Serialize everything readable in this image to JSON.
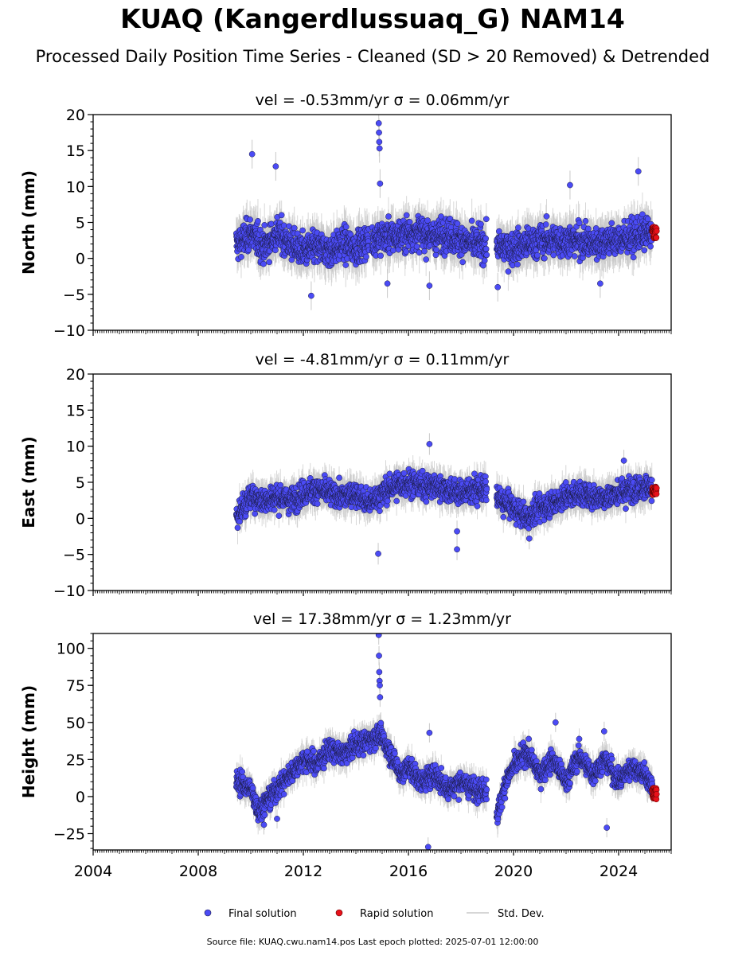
{
  "figure": {
    "title": "KUAQ (Kangerdlussuaq_G) NAM14",
    "subtitle": "Processed Daily Position Time Series - Cleaned (SD > 20 Removed) & Detrended",
    "footer": "Source file: KUAQ.cwu.nam14.pos  Last epoch plotted: 2025-07-01 12:00:00"
  },
  "legend": {
    "final_label": "Final solution",
    "rapid_label": "Rapid solution",
    "std_label": "Std. Dev."
  },
  "colors": {
    "final": "#4b4bf5",
    "rapid": "#e8111a",
    "std": "#c8c8c8",
    "marker_edge": "#1a1a40"
  },
  "chart_data": [
    {
      "type": "scatter",
      "title": "vel = -0.53mm/yr   σ = 0.06mm/yr",
      "ylabel": "North (mm)",
      "xlim": [
        2004.0,
        2026.0
      ],
      "ylim": [
        -10,
        20
      ],
      "yticks": [
        -10,
        -5,
        0,
        5,
        10,
        15,
        20
      ],
      "ytick_labels": [
        "−10",
        "−5",
        "0",
        "5",
        "10",
        "15",
        "20"
      ],
      "data_start": 2009.45,
      "data_end": 2025.45,
      "rapid_start": 2025.28,
      "gaps": [
        [
          2014.5,
          2014.62
        ],
        [
          2018.98,
          2019.35
        ]
      ],
      "series": [
        {
          "name": "Final solution",
          "kind": "profile",
          "x": [
            2009.5,
            2010.0,
            2010.5,
            2011.0,
            2011.5,
            2012.0,
            2012.5,
            2013.0,
            2013.5,
            2014.0,
            2014.5,
            2015.0,
            2015.5,
            2016.0,
            2016.5,
            2017.0,
            2017.5,
            2018.0,
            2018.5,
            2019.0,
            2019.5,
            2020.0,
            2020.5,
            2021.0,
            2021.5,
            2022.0,
            2022.5,
            2023.0,
            2023.5,
            2024.0,
            2024.5,
            2025.0,
            2025.3
          ],
          "y": [
            2.0,
            3.5,
            1.5,
            3.5,
            2.0,
            1.0,
            1.5,
            1.0,
            2.0,
            1.5,
            2.5,
            3.0,
            3.0,
            3.5,
            3.5,
            3.0,
            3.5,
            2.5,
            2.0,
            2.0,
            1.5,
            1.5,
            2.0,
            2.5,
            2.5,
            2.5,
            2.5,
            2.0,
            2.5,
            2.5,
            3.0,
            3.5,
            3.5
          ],
          "scatter_sd": 2.0,
          "outliers": [
            [
              2010.05,
              14.5
            ],
            [
              2010.95,
              12.8
            ],
            [
              2014.87,
              18.8
            ],
            [
              2014.88,
              17.5
            ],
            [
              2014.89,
              16.2
            ],
            [
              2014.9,
              15.3
            ],
            [
              2014.92,
              10.4
            ],
            [
              2012.3,
              -5.2
            ],
            [
              2015.2,
              -3.5
            ],
            [
              2016.8,
              -3.8
            ],
            [
              2019.4,
              -4.0
            ],
            [
              2022.15,
              10.2
            ],
            [
              2023.3,
              -3.5
            ],
            [
              2024.75,
              12.1
            ]
          ]
        },
        {
          "name": "Rapid solution",
          "kind": "rapid",
          "y": 3.6,
          "spread": 0.8
        }
      ]
    },
    {
      "type": "scatter",
      "title": "vel = -4.81mm/yr   σ = 0.11mm/yr",
      "ylabel": "East (mm)",
      "xlim": [
        2004.0,
        2026.0
      ],
      "ylim": [
        -10,
        20
      ],
      "yticks": [
        -10,
        -5,
        0,
        5,
        10,
        15,
        20
      ],
      "ytick_labels": [
        "−10",
        "−5",
        "0",
        "5",
        "10",
        "15",
        "20"
      ],
      "data_start": 2009.45,
      "data_end": 2025.45,
      "rapid_start": 2025.28,
      "gaps": [
        [
          2018.98,
          2019.35
        ]
      ],
      "series": [
        {
          "name": "Final solution",
          "kind": "profile",
          "x": [
            2009.5,
            2010.0,
            2010.5,
            2011.0,
            2011.5,
            2012.0,
            2012.5,
            2013.0,
            2013.5,
            2014.0,
            2014.5,
            2015.0,
            2015.5,
            2016.0,
            2016.5,
            2017.0,
            2017.5,
            2018.0,
            2018.5,
            2019.0,
            2019.5,
            2020.0,
            2020.5,
            2021.0,
            2021.5,
            2022.0,
            2022.5,
            2023.0,
            2023.5,
            2024.0,
            2024.5,
            2025.0,
            2025.3
          ],
          "y": [
            0.5,
            3.0,
            2.5,
            3.0,
            2.5,
            3.5,
            4.0,
            3.5,
            3.0,
            3.5,
            2.0,
            3.5,
            4.5,
            5.0,
            4.5,
            4.5,
            4.0,
            3.5,
            4.0,
            4.0,
            2.5,
            1.5,
            0.0,
            1.5,
            2.0,
            3.0,
            3.5,
            3.0,
            3.0,
            3.5,
            4.0,
            4.5,
            4.0
          ],
          "scatter_sd": 1.5,
          "outliers": [
            [
              2014.85,
              -4.9
            ],
            [
              2016.8,
              10.3
            ],
            [
              2017.85,
              -4.3
            ],
            [
              2017.85,
              -1.8
            ],
            [
              2020.6,
              -2.8
            ],
            [
              2024.2,
              8.0
            ]
          ]
        },
        {
          "name": "Rapid solution",
          "kind": "rapid",
          "y": 3.8,
          "spread": 0.6
        }
      ]
    },
    {
      "type": "scatter",
      "title": "vel = 17.38mm/yr   σ = 1.23mm/yr",
      "ylabel": "Height (mm)",
      "xlim": [
        2004.0,
        2026.0
      ],
      "ylim": [
        -36,
        110
      ],
      "yticks": [
        -25,
        0,
        25,
        50,
        75,
        100
      ],
      "ytick_labels": [
        "−25",
        "0",
        "25",
        "50",
        "75",
        "100"
      ],
      "data_start": 2009.45,
      "data_end": 2025.45,
      "rapid_start": 2025.28,
      "gaps": [
        [
          2018.98,
          2019.35
        ]
      ],
      "series": [
        {
          "name": "Final solution",
          "kind": "profile",
          "x": [
            2009.5,
            2010.0,
            2010.3,
            2010.5,
            2011.0,
            2011.5,
            2012.0,
            2012.5,
            2013.0,
            2013.5,
            2014.0,
            2014.5,
            2014.9,
            2015.3,
            2015.7,
            2016.0,
            2016.5,
            2017.0,
            2017.5,
            2018.0,
            2018.5,
            2019.0,
            2019.4,
            2019.7,
            2020.0,
            2020.5,
            2021.0,
            2021.5,
            2022.0,
            2022.5,
            2023.0,
            2023.5,
            2024.0,
            2024.5,
            2025.0,
            2025.3
          ],
          "y": [
            10,
            5,
            -10,
            -5,
            5,
            15,
            25,
            22,
            32,
            28,
            35,
            38,
            42,
            30,
            15,
            20,
            10,
            15,
            5,
            10,
            5,
            5,
            -12,
            10,
            20,
            30,
            15,
            25,
            10,
            28,
            15,
            25,
            10,
            20,
            15,
            5
          ],
          "scatter_sd": 6.5,
          "outliers": [
            [
              2014.87,
              109
            ],
            [
              2014.88,
              95
            ],
            [
              2014.89,
              84
            ],
            [
              2014.9,
              78
            ],
            [
              2014.91,
              75
            ],
            [
              2014.92,
              67
            ],
            [
              2016.75,
              -34
            ],
            [
              2016.8,
              43
            ],
            [
              2021.6,
              50
            ],
            [
              2023.55,
              -21
            ],
            [
              2023.45,
              44
            ],
            [
              2010.5,
              -19
            ],
            [
              2011.0,
              -15
            ]
          ]
        },
        {
          "name": "Rapid solution",
          "kind": "rapid",
          "y": 2.0,
          "spread": 4.0
        }
      ]
    }
  ],
  "xaxis": {
    "ticks": [
      2004,
      2008,
      2012,
      2016,
      2020,
      2024
    ],
    "tick_labels": [
      "2004",
      "2008",
      "2012",
      "2016",
      "2020",
      "2024"
    ]
  }
}
